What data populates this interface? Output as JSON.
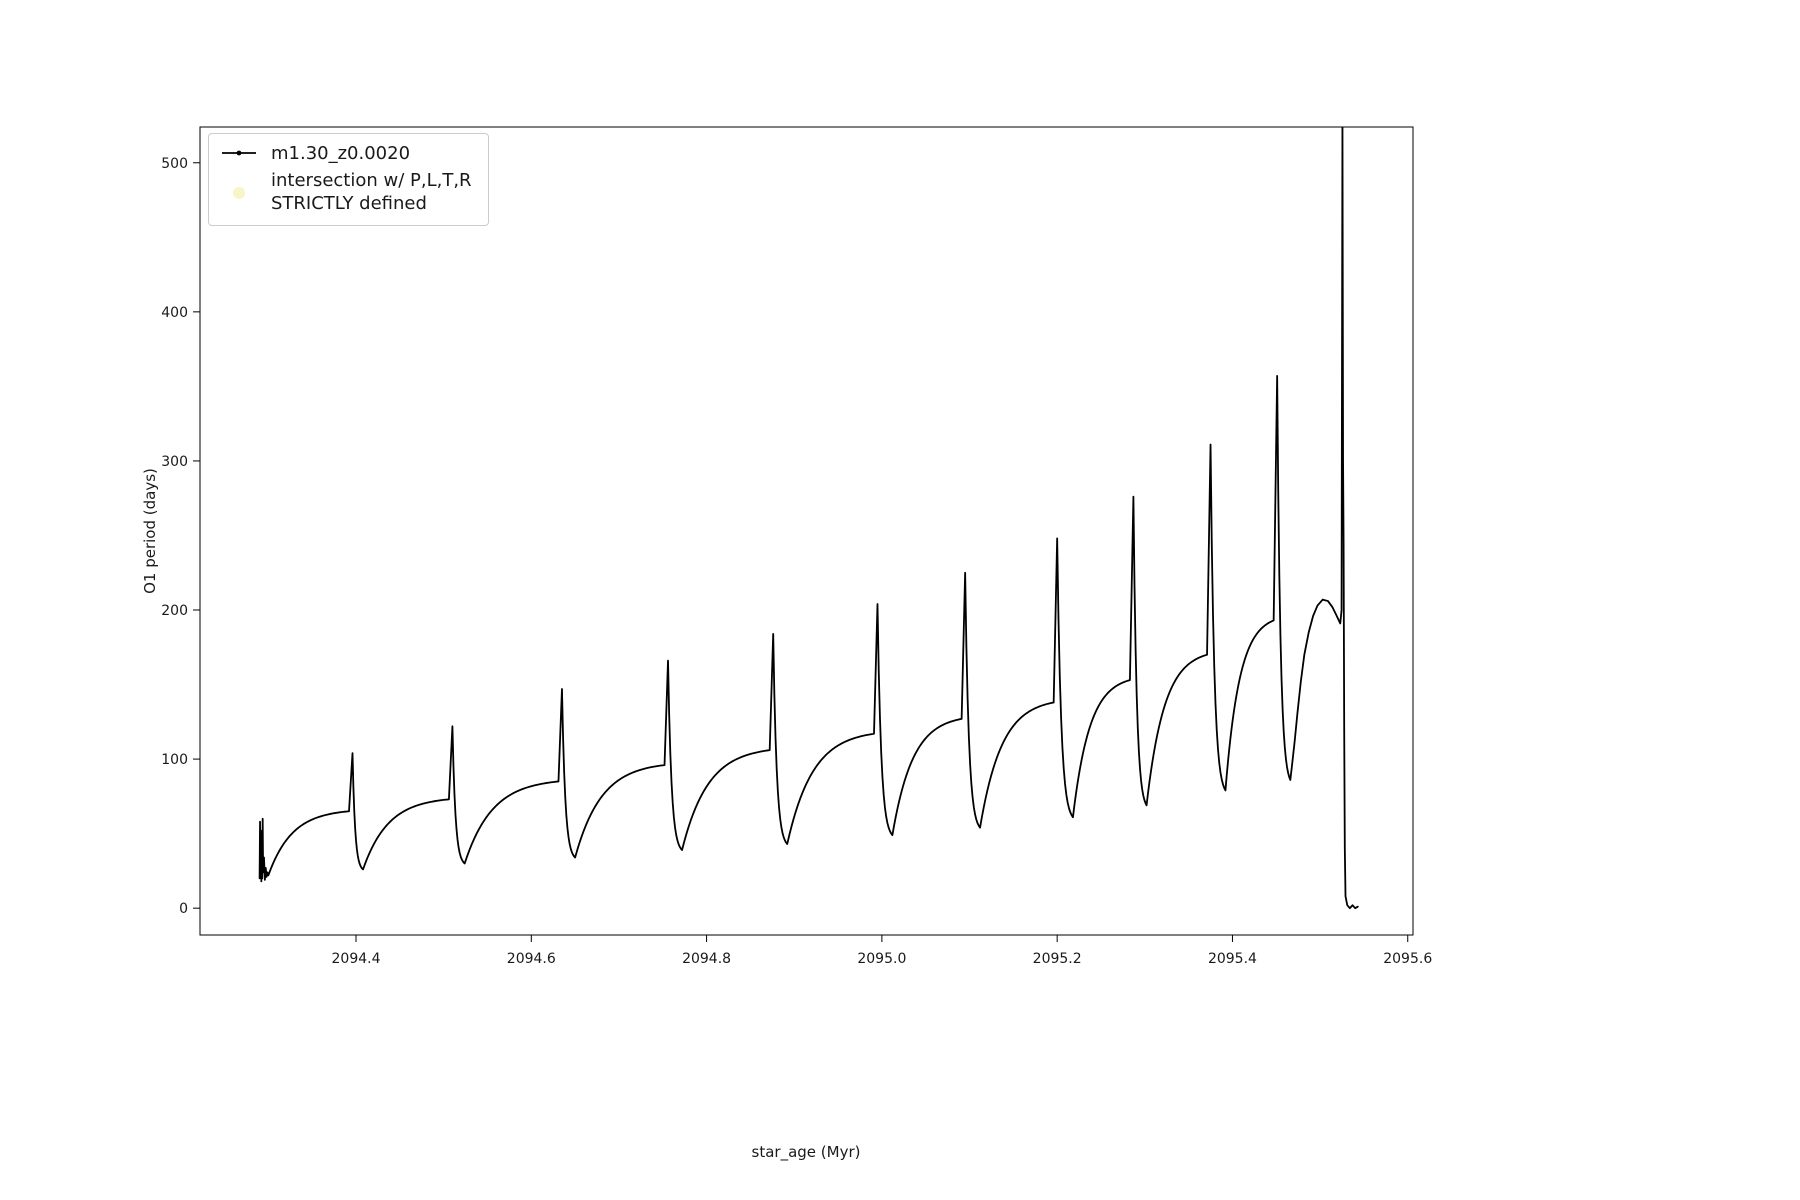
{
  "figure": {
    "background_color": "#ffffff",
    "frame_color": "#000000",
    "tick_label_color": "#1a1a1a"
  },
  "chart_data": {
    "type": "line",
    "title": "",
    "xlabel": "star_age (Myr)",
    "ylabel": "O1 period (days)",
    "xlim": [
      2094.222,
      2095.606
    ],
    "ylim": [
      -18,
      524
    ],
    "grid": false,
    "legend": {
      "position": "upper left",
      "entries": [
        {
          "label": "m1.30_z0.0020",
          "type": "line-with-dot-marker",
          "color": "#000000"
        },
        {
          "label_line1": "intersection w/ P,L,T,R",
          "label_line2": "STRICTLY defined",
          "type": "dot-marker",
          "color": "#f3f0a0"
        }
      ]
    },
    "xticks": {
      "values": [
        2094.4,
        2094.6,
        2094.8,
        2095.0,
        2095.2,
        2095.4,
        2095.6
      ],
      "labels": [
        "2094.4",
        "2094.6",
        "2094.8",
        "2095.0",
        "2095.2",
        "2095.4",
        "2095.6"
      ]
    },
    "yticks": {
      "values": [
        0,
        100,
        200,
        300,
        400,
        500
      ],
      "labels": [
        "0",
        "100",
        "200",
        "300",
        "400",
        "500"
      ]
    },
    "series": [
      {
        "name": "m1.30_z0.0020",
        "color": "#000000",
        "marker": "point",
        "linewidth": 1.8
      }
    ],
    "intro_points": [
      [
        2094.29,
        20
      ],
      [
        2094.2905,
        58
      ],
      [
        2094.291,
        22
      ],
      [
        2094.2915,
        52
      ],
      [
        2094.292,
        18
      ],
      [
        2094.2925,
        44
      ],
      [
        2094.293,
        20
      ],
      [
        2094.2935,
        60
      ],
      [
        2094.294,
        24
      ],
      [
        2094.295,
        34
      ],
      [
        2094.296,
        19
      ],
      [
        2094.297,
        27
      ],
      [
        2094.298,
        21
      ],
      [
        2094.299,
        24
      ],
      [
        2094.3,
        22
      ]
    ],
    "cycles": [
      {
        "x0": 2094.3,
        "y0": 22,
        "x1": 2094.392,
        "y1": 65,
        "xs": 2094.396,
        "ys": 104,
        "x2": 2094.408,
        "y2": 26
      },
      {
        "x0": 2094.408,
        "y0": 26,
        "x1": 2094.506,
        "y1": 73,
        "xs": 2094.51,
        "ys": 122,
        "x2": 2094.524,
        "y2": 30
      },
      {
        "x0": 2094.524,
        "y0": 30,
        "x1": 2094.631,
        "y1": 85,
        "xs": 2094.635,
        "ys": 147,
        "x2": 2094.65,
        "y2": 34
      },
      {
        "x0": 2094.65,
        "y0": 34,
        "x1": 2094.752,
        "y1": 96,
        "xs": 2094.756,
        "ys": 166,
        "x2": 2094.772,
        "y2": 39
      },
      {
        "x0": 2094.772,
        "y0": 39,
        "x1": 2094.872,
        "y1": 106,
        "xs": 2094.876,
        "ys": 184,
        "x2": 2094.892,
        "y2": 43
      },
      {
        "x0": 2094.892,
        "y0": 43,
        "x1": 2094.991,
        "y1": 117,
        "xs": 2094.995,
        "ys": 204,
        "x2": 2095.012,
        "y2": 49
      },
      {
        "x0": 2095.012,
        "y0": 49,
        "x1": 2095.091,
        "y1": 127,
        "xs": 2095.095,
        "ys": 225,
        "x2": 2095.112,
        "y2": 54
      },
      {
        "x0": 2095.112,
        "y0": 54,
        "x1": 2095.196,
        "y1": 138,
        "xs": 2095.2,
        "ys": 248,
        "x2": 2095.218,
        "y2": 61
      },
      {
        "x0": 2095.218,
        "y0": 61,
        "x1": 2095.283,
        "y1": 153,
        "xs": 2095.287,
        "ys": 276,
        "x2": 2095.302,
        "y2": 69
      },
      {
        "x0": 2095.302,
        "y0": 69,
        "x1": 2095.371,
        "y1": 170,
        "xs": 2095.375,
        "ys": 311,
        "x2": 2095.392,
        "y2": 79
      },
      {
        "x0": 2095.392,
        "y0": 79,
        "x1": 2095.447,
        "y1": 193,
        "xs": 2095.451,
        "ys": 357,
        "x2": 2095.466,
        "y2": 86
      }
    ],
    "final_points": [
      [
        2095.468,
        96
      ],
      [
        2095.471,
        112
      ],
      [
        2095.474,
        130
      ],
      [
        2095.478,
        152
      ],
      [
        2095.482,
        170
      ],
      [
        2095.487,
        185
      ],
      [
        2095.492,
        196
      ],
      [
        2095.497,
        203
      ],
      [
        2095.503,
        207
      ],
      [
        2095.509,
        206
      ],
      [
        2095.514,
        202
      ],
      [
        2095.519,
        196
      ],
      [
        2095.523,
        191
      ],
      [
        2095.5245,
        200
      ],
      [
        2095.5255,
        530
      ],
      [
        2095.5262,
        300
      ],
      [
        2095.5268,
        245
      ],
      [
        2095.5275,
        120
      ],
      [
        2095.5282,
        40
      ],
      [
        2095.529,
        8
      ],
      [
        2095.531,
        2
      ],
      [
        2095.534,
        0
      ],
      [
        2095.537,
        2
      ],
      [
        2095.54,
        0
      ],
      [
        2095.543,
        1
      ]
    ]
  }
}
